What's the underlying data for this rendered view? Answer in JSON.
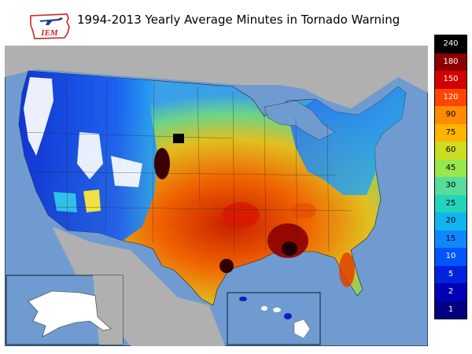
{
  "title": "1994-2013 Yearly Average Minutes in Tornado Warning",
  "logo": {
    "text": "IEM",
    "icon": "iowa-outline-airplane-logo",
    "color": "#cc2222"
  },
  "map": {
    "ocean_color": "#6f9bd1",
    "land_outside_color": "#b0b0b0",
    "insets": [
      "alaska",
      "hawaii"
    ]
  },
  "colorbar": {
    "labels": [
      "240",
      "180",
      "150",
      "120",
      "90",
      "75",
      "60",
      "45",
      "30",
      "25",
      "20",
      "15",
      "10",
      "5",
      "2",
      "1"
    ],
    "colors": [
      "#000000",
      "#8b0000",
      "#d40000",
      "#ff4500",
      "#ff8c00",
      "#ffb400",
      "#ccdd22",
      "#99e64d",
      "#55dd99",
      "#22d4bb",
      "#11b4ee",
      "#0d88ff",
      "#0055ff",
      "#0022dd",
      "#0000b4",
      "#000080"
    ],
    "light_text": [
      true,
      true,
      true,
      true,
      false,
      false,
      false,
      false,
      false,
      false,
      false,
      false,
      true,
      true,
      true,
      true
    ]
  }
}
